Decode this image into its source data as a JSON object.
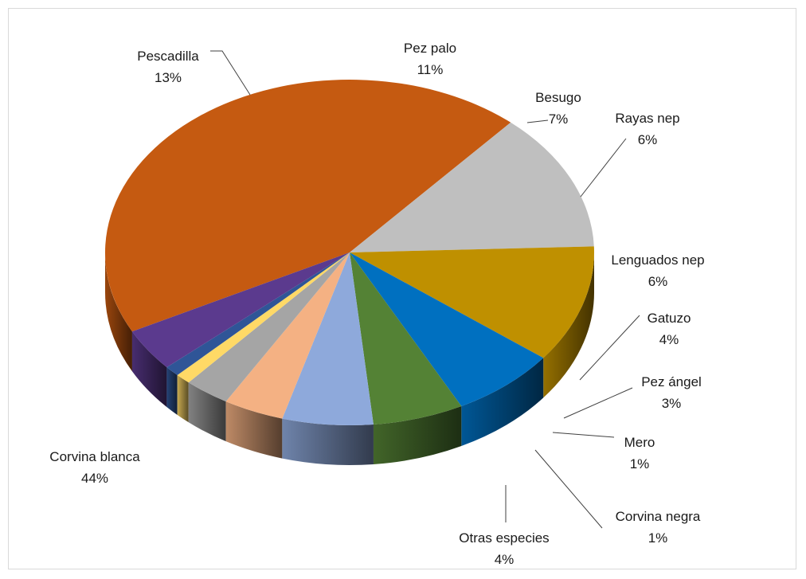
{
  "chart_data": {
    "type": "pie",
    "style": "3d",
    "title": "",
    "slices": [
      {
        "label": "Corvina blanca",
        "value": 44,
        "pct_label": "44%",
        "color": "#C55A11"
      },
      {
        "label": "Pescadilla",
        "value": 13,
        "pct_label": "13%",
        "color": "#BFBFBF"
      },
      {
        "label": "Pez palo",
        "value": 11,
        "pct_label": "11%",
        "color": "#BF9000"
      },
      {
        "label": "Besugo",
        "value": 7,
        "pct_label": "7%",
        "color": "#0070C0"
      },
      {
        "label": "Rayas nep",
        "value": 6,
        "pct_label": "6%",
        "color": "#548235"
      },
      {
        "label": "Lenguados nep",
        "value": 6,
        "pct_label": "6%",
        "color": "#8EA9DB"
      },
      {
        "label": "Gatuzo",
        "value": 4,
        "pct_label": "4%",
        "color": "#F4B183"
      },
      {
        "label": "Pez ángel",
        "value": 3,
        "pct_label": "3%",
        "color": "#A5A5A5"
      },
      {
        "label": "Mero",
        "value": 1,
        "pct_label": "1%",
        "color": "#FFD966"
      },
      {
        "label": "Corvina negra",
        "value": 1,
        "pct_label": "1%",
        "color": "#2F5597"
      },
      {
        "label": "Otras especies",
        "value": 4,
        "pct_label": "4%",
        "color": "#5B3A8E"
      }
    ]
  }
}
